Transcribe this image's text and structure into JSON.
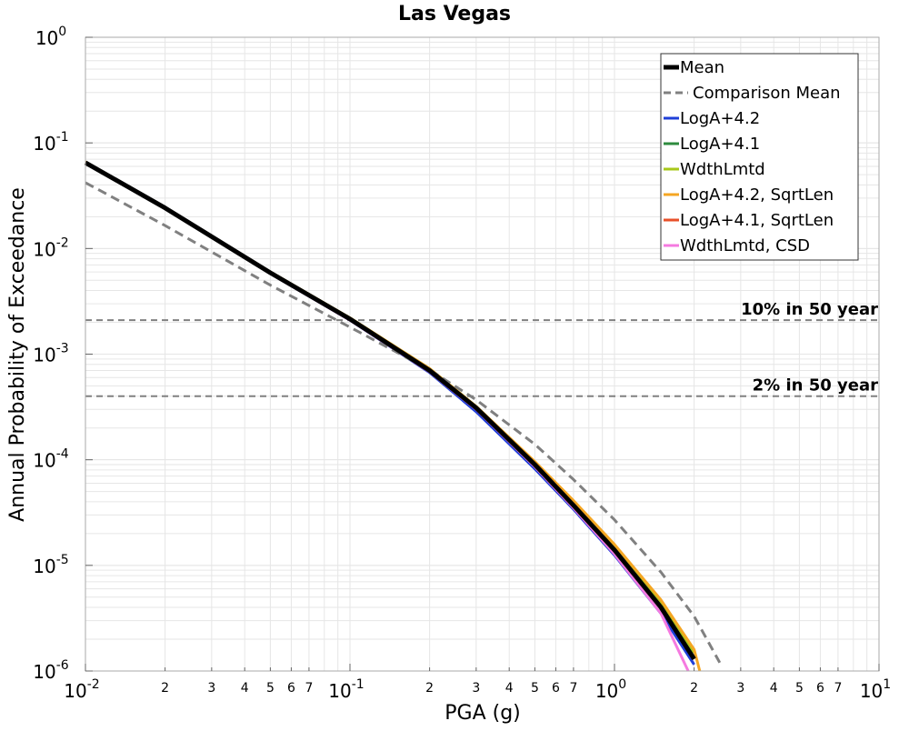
{
  "chart_data": {
    "type": "line",
    "title": "Las Vegas",
    "xlabel": "PGA (g)",
    "ylabel": "Annual Probability of Exceedance",
    "xscale": "log",
    "yscale": "log",
    "xlim": [
      0.01,
      10
    ],
    "ylim": [
      1e-06,
      1
    ],
    "grid": true,
    "legend_position": "top-right",
    "x_major_ticks": [
      {
        "value": 0.01,
        "base": "10",
        "exp": "-2"
      },
      {
        "value": 0.1,
        "base": "10",
        "exp": "-1"
      },
      {
        "value": 1,
        "base": "10",
        "exp": "0"
      },
      {
        "value": 10,
        "base": "10",
        "exp": "1"
      }
    ],
    "x_minor_ticks": [
      {
        "value": 0.02,
        "label": "2"
      },
      {
        "value": 0.03,
        "label": "3"
      },
      {
        "value": 0.04,
        "label": "4"
      },
      {
        "value": 0.05,
        "label": "5"
      },
      {
        "value": 0.06,
        "label": "6"
      },
      {
        "value": 0.07,
        "label": "7"
      },
      {
        "value": 0.2,
        "label": "2"
      },
      {
        "value": 0.3,
        "label": "3"
      },
      {
        "value": 0.4,
        "label": "4"
      },
      {
        "value": 0.5,
        "label": "5"
      },
      {
        "value": 0.6,
        "label": "6"
      },
      {
        "value": 0.7,
        "label": "7"
      },
      {
        "value": 2,
        "label": "2"
      },
      {
        "value": 3,
        "label": "3"
      },
      {
        "value": 4,
        "label": "4"
      },
      {
        "value": 5,
        "label": "5"
      },
      {
        "value": 6,
        "label": "6"
      },
      {
        "value": 7,
        "label": "7"
      }
    ],
    "y_major_ticks": [
      {
        "value": 1,
        "base": "10",
        "exp": "0"
      },
      {
        "value": 0.1,
        "base": "10",
        "exp": "-1"
      },
      {
        "value": 0.01,
        "base": "10",
        "exp": "-2"
      },
      {
        "value": 0.001,
        "base": "10",
        "exp": "-3"
      },
      {
        "value": 0.0001,
        "base": "10",
        "exp": "-4"
      },
      {
        "value": 1e-05,
        "base": "10",
        "exp": "-5"
      },
      {
        "value": 1e-06,
        "base": "10",
        "exp": "-6"
      }
    ],
    "reference_lines": [
      {
        "value": 0.0021,
        "label": "10% in 50 year"
      },
      {
        "value": 0.0004,
        "label": "2% in 50 year"
      }
    ],
    "series": [
      {
        "name": "LogA+4.2",
        "color": "#1f3fd8",
        "style": "solid",
        "x": [
          0.01,
          0.02,
          0.05,
          0.1,
          0.2,
          0.3,
          0.5,
          0.7,
          1.0,
          1.5,
          2.0
        ],
        "y": [
          0.065,
          0.024,
          0.0058,
          0.0021,
          0.00067,
          0.000285,
          8.2e-05,
          3.4e-05,
          1.25e-05,
          3.5e-06,
          1.15e-06
        ]
      },
      {
        "name": "LogA+4.1",
        "color": "#2e8b3e",
        "style": "solid",
        "x": [
          0.01,
          0.02,
          0.05,
          0.1,
          0.2,
          0.3,
          0.5,
          0.7,
          1.0,
          1.5,
          2.0
        ],
        "y": [
          0.065,
          0.024,
          0.0059,
          0.00215,
          0.00071,
          0.00031,
          9e-05,
          3.8e-05,
          1.43e-05,
          4.1e-06,
          1.35e-06
        ]
      },
      {
        "name": "WdthLmtd",
        "color": "#a8c81a",
        "style": "solid",
        "x": [
          0.01,
          0.02,
          0.05,
          0.1,
          0.2,
          0.3,
          0.5,
          0.7,
          1.0,
          1.5,
          2.0
        ],
        "y": [
          0.066,
          0.0245,
          0.006,
          0.0022,
          0.00073,
          0.00032,
          9.5e-05,
          4e-05,
          1.55e-05,
          4.5e-06,
          1.5e-06
        ]
      },
      {
        "name": "LogA+4.2, SqrtLen",
        "color": "#f5a623",
        "style": "solid",
        "x": [
          0.01,
          0.02,
          0.05,
          0.1,
          0.2,
          0.3,
          0.5,
          0.7,
          1.0,
          1.5,
          2.0,
          2.1
        ],
        "y": [
          0.066,
          0.0245,
          0.006,
          0.0022,
          0.00073,
          0.00032,
          9.6e-05,
          4.1e-05,
          1.58e-05,
          4.7e-06,
          1.6e-06,
          1e-06
        ]
      },
      {
        "name": "LogA+4.1, SqrtLen",
        "color": "#e8502a",
        "style": "solid",
        "x": [
          0.01,
          0.02,
          0.05,
          0.1,
          0.2,
          0.3,
          0.5,
          0.7,
          1.0,
          1.5,
          2.0
        ],
        "y": [
          0.065,
          0.0242,
          0.0059,
          0.00215,
          0.0007,
          0.00031,
          9e-05,
          3.7e-05,
          1.4e-05,
          4e-06,
          1.3e-06
        ]
      },
      {
        "name": "WdthLmtd, CSD",
        "color": "#f57ae0",
        "style": "solid",
        "x": [
          0.01,
          0.02,
          0.05,
          0.1,
          0.2,
          0.3,
          0.5,
          0.7,
          1.0,
          1.5,
          1.9
        ],
        "y": [
          0.065,
          0.024,
          0.0058,
          0.0021,
          0.00068,
          0.0003,
          8.6e-05,
          3.5e-05,
          1.28e-05,
          3.5e-06,
          1e-06
        ]
      },
      {
        "name": "Mean",
        "color": "#000000",
        "style": "solid",
        "x": [
          0.01,
          0.02,
          0.05,
          0.1,
          0.2,
          0.3,
          0.5,
          0.7,
          1.0,
          1.5,
          2.0
        ],
        "y": [
          0.065,
          0.0242,
          0.0059,
          0.00215,
          0.0007,
          0.00031,
          9e-05,
          3.7e-05,
          1.4e-05,
          4e-06,
          1.3e-06
        ]
      },
      {
        "name": "Comparison Mean",
        "color": "#808080",
        "style": "dashed",
        "x": [
          0.01,
          0.02,
          0.05,
          0.1,
          0.2,
          0.3,
          0.5,
          0.7,
          1.0,
          1.5,
          2.0,
          2.5
        ],
        "y": [
          0.042,
          0.0165,
          0.0045,
          0.0018,
          0.00071,
          0.00037,
          0.00014,
          6.5e-05,
          2.7e-05,
          8.6e-06,
          3.3e-06,
          1.2e-06
        ]
      }
    ],
    "legend_order": [
      "Mean",
      "Comparison Mean",
      "LogA+4.2",
      "LogA+4.1",
      "WdthLmtd",
      "LogA+4.2, SqrtLen",
      "LogA+4.1, SqrtLen",
      "WdthLmtd, CSD"
    ]
  }
}
